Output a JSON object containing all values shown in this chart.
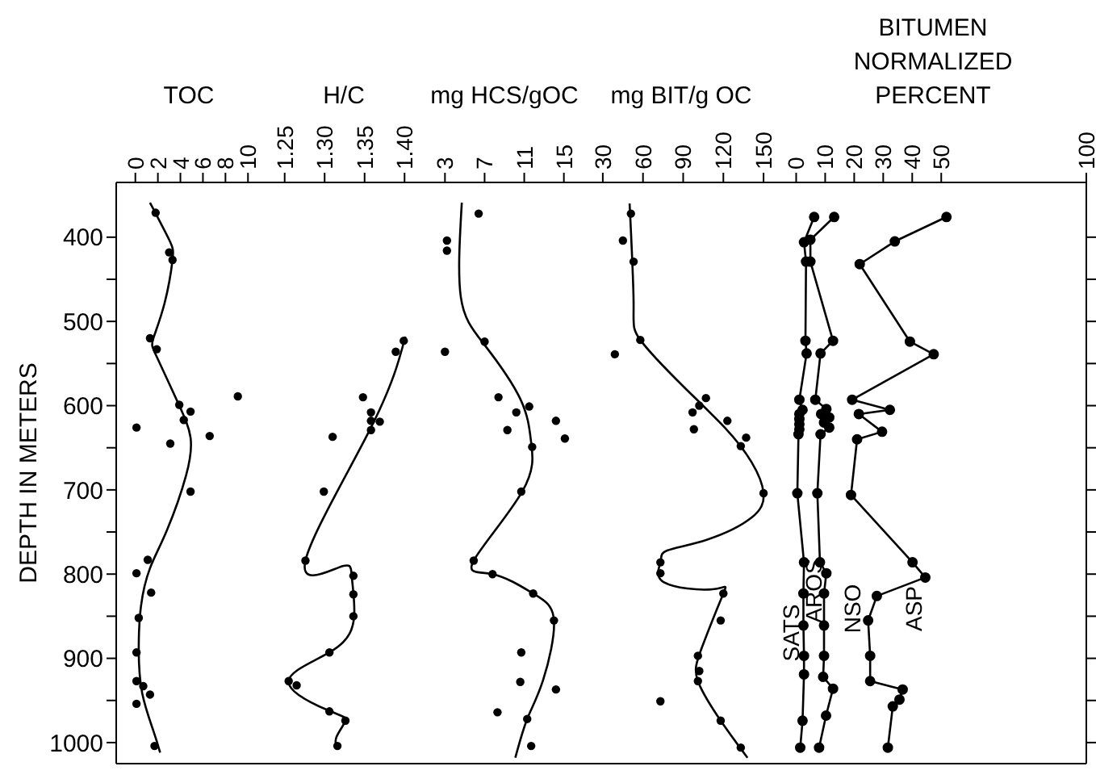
{
  "chart_data": [
    {
      "type": "scatter",
      "title": "TOC",
      "ylabel": "DEPTH IN METERS",
      "xlim": [
        -1.7,
        11.2
      ],
      "xticks": [
        0,
        2,
        4,
        6,
        8,
        10
      ],
      "ylim": [
        1025,
        335
      ],
      "yticks": [
        400,
        {
          "value": 450,
          "label": null
        },
        500,
        {
          "value": 550,
          "label": null
        },
        600,
        {
          "value": 650,
          "label": null
        },
        700,
        {
          "value": 750,
          "label": null
        },
        800,
        {
          "value": 850,
          "label": null
        },
        900,
        {
          "value": 950,
          "label": null
        },
        1000
      ],
      "series": [
        {
          "type": "scatter",
          "marker": "circle",
          "color": "#000000",
          "x": [
            1.8,
            3.0,
            3.3,
            1.3,
            1.9,
            3.9,
            4.3,
            4.9,
            9.1,
            0.1,
            3.1,
            6.6,
            4.9,
            1.1,
            0.1,
            1.4,
            0.3,
            0.1,
            0.1,
            0.7,
            1.3,
            0.1,
            1.7
          ],
          "values": [
            371,
            418,
            427,
            520,
            533,
            599,
            617,
            607,
            589,
            626,
            645,
            636,
            702,
            783,
            799,
            822,
            852,
            893,
            927,
            933,
            943,
            954,
            1004
          ]
        },
        {
          "type": "line",
          "color": "#000000",
          "x": [
            1.3,
            3.0,
            3.3,
            2.6,
            1.6,
            1.9,
            3.8,
            4.9,
            4.5,
            2.8,
            1.3,
            0.5,
            0.3,
            0.6,
            1.6,
            2.2
          ],
          "values": [
            359,
            403,
            427,
            478,
            520,
            542,
            597,
            638,
            683,
            748,
            793,
            838,
            889,
            941,
            986,
            1012
          ]
        }
      ]
    },
    {
      "type": "scatter",
      "title": "H/C",
      "tick_labels": "x",
      "xlim": [
        1.221,
        1.427
      ],
      "xticks": [
        1.25,
        {
          "value": 1.3,
          "label": "1.30"
        },
        1.35,
        {
          "value": 1.4,
          "label": "1.40"
        }
      ],
      "ylim": [
        1025,
        335
      ],
      "series": [
        {
          "type": "scatter",
          "marker": "circle",
          "color": "#000000",
          "x": [
            1.399,
            1.389,
            1.348,
            1.369,
            1.358,
            1.358,
            1.358,
            1.31,
            1.299,
            1.276,
            1.336,
            1.336,
            1.336,
            1.306,
            1.255,
            1.265,
            1.306,
            1.326,
            1.316
          ],
          "values": [
            523,
            536,
            590,
            619,
            608,
            618,
            629,
            637,
            702,
            784,
            802,
            824,
            850,
            893,
            927,
            932,
            963,
            974,
            1004
          ]
        },
        {
          "type": "line",
          "color": "#000000",
          "x": [
            1.401,
            1.358,
            1.276,
            1.318,
            1.334,
            1.337,
            1.311,
            1.255,
            1.305,
            1.326,
            1.315,
            1.316
          ],
          "values": [
            518,
            626,
            784,
            792,
            803,
            849,
            890,
            927,
            962,
            974,
            993,
            1006
          ]
        }
      ]
    },
    {
      "type": "scatter",
      "title": "mg HCS/gOC",
      "tick_labels": "x",
      "xlim": [
        1.1,
        16.9
      ],
      "xticks": [
        3,
        7,
        11,
        15
      ],
      "ylim": [
        1025,
        335
      ],
      "series": [
        {
          "type": "scatter",
          "marker": "circle",
          "color": "#000000",
          "x": [
            6.4,
            3.2,
            3.2,
            7.0,
            3.0,
            8.4,
            10.2,
            11.5,
            9.3,
            11.8,
            14.2,
            15.1,
            10.7,
            5.9,
            7.8,
            11.9,
            14.0,
            10.7,
            10.6,
            14.2,
            8.3,
            11.3,
            11.7
          ],
          "values": [
            372,
            404,
            416,
            524,
            536,
            590,
            608,
            601,
            629,
            649,
            618,
            639,
            702,
            784,
            800,
            823,
            855,
            893,
            928,
            937,
            964,
            972,
            1004
          ]
        },
        {
          "type": "line",
          "color": "#000000",
          "x": [
            4.7,
            4.6,
            7.0,
            10.6,
            11.7,
            10.8,
            5.9,
            7.8,
            11.9,
            14.0,
            12.9,
            11.3,
            10.1
          ],
          "values": [
            359,
            471,
            528,
            592,
            644,
            702,
            784,
            800,
            823,
            855,
            926,
            972,
            1018
          ]
        }
      ]
    },
    {
      "type": "scatter",
      "title": "mg BIT/g OC",
      "tick_labels": "x",
      "xlim": [
        15,
        162
      ],
      "xticks": [
        30,
        60,
        90,
        120,
        150
      ],
      "ylim": [
        1025,
        335
      ],
      "series": [
        {
          "type": "scatter",
          "marker": "circle",
          "color": "#000000",
          "x": [
            51,
            45,
            53,
            58,
            39,
            107,
            102,
            97,
            98,
            123,
            137,
            133,
            150,
            73,
            73,
            120,
            118,
            101,
            102,
            101,
            73,
            118,
            133
          ],
          "values": [
            372,
            404,
            429,
            522,
            539,
            591,
            600,
            608,
            628,
            618,
            638,
            648,
            704,
            786,
            799,
            823,
            855,
            897,
            915,
            927,
            951,
            974,
            1006
          ]
        },
        {
          "type": "line",
          "color": "#000000",
          "x": [
            50,
            53,
            58,
            90,
            121,
            141,
            150,
            141,
            108,
            78,
            73,
            76,
            112,
            120,
            104,
            101,
            118,
            138
          ],
          "values": [
            360,
            479,
            522,
            577,
            626,
            667,
            704,
            733,
            759,
            772,
            786,
            810,
            818,
            823,
            887,
            927,
            974,
            1018
          ]
        }
      ]
    },
    {
      "type": "line",
      "title": "BITUMEN NORMALIZED PERCENT",
      "tick_labels": "x",
      "xlim": [
        -5.7,
        100
      ],
      "xticks": [
        0,
        10,
        20,
        30,
        40,
        50,
        100
      ],
      "ylim": [
        1025,
        335
      ],
      "yticks": [
        {
          "value": 400,
          "label": null
        },
        {
          "value": 450,
          "label": null
        },
        {
          "value": 500,
          "label": null
        },
        {
          "value": 550,
          "label": null
        },
        {
          "value": 600,
          "label": null
        },
        {
          "value": 650,
          "label": null
        },
        {
          "value": 700,
          "label": null
        },
        {
          "value": 750,
          "label": null
        },
        {
          "value": 800,
          "label": null
        },
        {
          "value": 850,
          "label": null
        },
        {
          "value": 900,
          "label": null
        },
        {
          "value": 950,
          "label": null
        },
        {
          "value": 1000,
          "label": null
        }
      ],
      "marker": "circle",
      "line_style": "solid",
      "annotations": [
        "SATS",
        "AROS",
        "NSO",
        "ASP"
      ],
      "series": [
        {
          "color": "#000000",
          "x": [
            6.2,
            2.7,
            3.4,
            3.2,
            3.6,
            1.1,
            2.2,
            1.1,
            1.1,
            1.1,
            1.1,
            0.8,
            0.4,
            2.7,
            2.5,
            2.5,
            2.7,
            2.7,
            2.2,
            1.4
          ],
          "values": [
            376,
            406,
            429,
            523,
            538,
            593,
            605,
            610,
            616,
            622,
            628,
            634,
            704,
            786,
            823,
            861,
            897,
            919,
            974,
            1006
          ]
        },
        {
          "color": "#000000",
          "x": [
            13.1,
            4.9,
            4.9,
            12.7,
            8.4,
            6.6,
            10.4,
            8.6,
            11.4,
            9.6,
            11.4,
            8.4,
            7.3,
            8.2,
            10.4,
            9.6,
            9.6,
            9.6,
            9.3,
            12.7,
            10.3,
            7.9
          ],
          "values": [
            376,
            403,
            429,
            523,
            538,
            593,
            604,
            610,
            614,
            620,
            626,
            634,
            704,
            786,
            799,
            823,
            861,
            897,
            922,
            936,
            968,
            1006
          ]
        },
        {
          "color": "#000000",
          "x": [
            51.8,
            34,
            21.9,
            39.2,
            47.4,
            19.3,
            32.3,
            21.6,
            29.6,
            21,
            18.9,
            40.1,
            44.5,
            27.8,
            24.8,
            25.5,
            25.5,
            36.7,
            35.6,
            33.3,
            31.6
          ],
          "values": [
            376,
            405,
            432,
            524,
            539,
            593,
            605,
            610,
            631,
            640,
            706,
            786,
            804,
            826,
            855,
            897,
            927,
            937,
            949,
            957,
            1006
          ]
        }
      ]
    }
  ]
}
